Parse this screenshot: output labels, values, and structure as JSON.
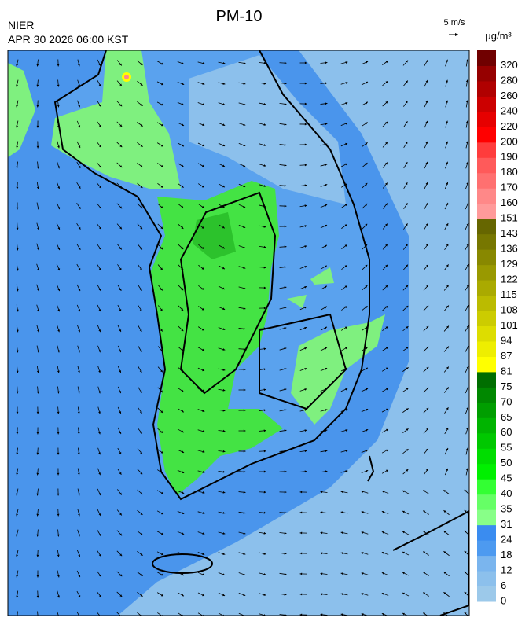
{
  "header": {
    "title": "PM-10",
    "source": "NIER",
    "timestamp": "APR 30 2026 06:00 KST"
  },
  "wind_scale": {
    "label": "5 m/s"
  },
  "colorbar": {
    "unit": "μg/m³",
    "ticks": [
      0,
      6,
      12,
      18,
      24,
      31,
      35,
      40,
      45,
      50,
      55,
      60,
      65,
      70,
      75,
      81,
      87,
      94,
      101,
      108,
      115,
      122,
      129,
      136,
      143,
      151,
      160,
      170,
      180,
      190,
      200,
      220,
      240,
      260,
      280,
      320
    ],
    "colors": [
      "#9cc9ea",
      "#8cc0ec",
      "#7ab5ee",
      "#4d9af0",
      "#3a8cf0",
      "#88ff88",
      "#66ff66",
      "#33ff33",
      "#00f000",
      "#00dd00",
      "#00c800",
      "#00b400",
      "#009e00",
      "#008800",
      "#006e00",
      "#ffff00",
      "#eeee00",
      "#dddd00",
      "#cccc00",
      "#bbbb00",
      "#aaaa00",
      "#999900",
      "#888800",
      "#777700",
      "#666600",
      "#ff9a9a",
      "#ff8888",
      "#ff7070",
      "#ff5a5a",
      "#ff3c3c",
      "#ff0000",
      "#e60000",
      "#cc0000",
      "#b00000",
      "#960000",
      "#700000"
    ]
  }
}
